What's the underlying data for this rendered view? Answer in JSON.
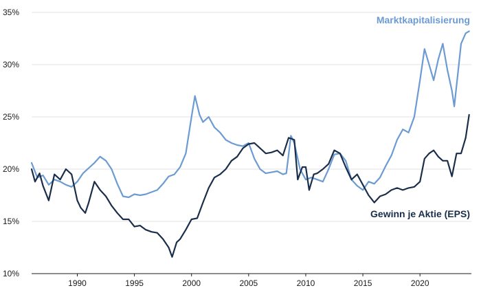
{
  "chart_data": {
    "type": "line",
    "title": "",
    "xlabel": "",
    "ylabel": "",
    "xlim": [
      1986.0,
      2024.5
    ],
    "ylim": [
      10,
      35
    ],
    "grid": true,
    "y_ticks": [
      10,
      15,
      20,
      25,
      30,
      35
    ],
    "y_tick_labels": [
      "10%",
      "15%",
      "20%",
      "25%",
      "30%",
      "35%"
    ],
    "x_ticks": [
      1990,
      1995,
      2000,
      2005,
      2010,
      2015,
      2020
    ],
    "x_tick_labels": [
      "1990",
      "1995",
      "2000",
      "2005",
      "2010",
      "2015",
      "2020"
    ],
    "series": [
      {
        "name": "Marktkapitalisierung",
        "color": "#6b9bd2",
        "label_position": "top-right",
        "points": [
          [
            1986.0,
            20.6
          ],
          [
            1986.5,
            19.2
          ],
          [
            1987.0,
            19.4
          ],
          [
            1987.5,
            18.5
          ],
          [
            1988.0,
            19.0
          ],
          [
            1988.5,
            18.8
          ],
          [
            1989.0,
            18.5
          ],
          [
            1989.5,
            18.3
          ],
          [
            1990.0,
            18.8
          ],
          [
            1990.5,
            19.6
          ],
          [
            1991.0,
            20.1
          ],
          [
            1991.5,
            20.6
          ],
          [
            1992.0,
            21.2
          ],
          [
            1992.5,
            20.8
          ],
          [
            1993.0,
            20.0
          ],
          [
            1993.5,
            18.6
          ],
          [
            1994.0,
            17.4
          ],
          [
            1994.5,
            17.3
          ],
          [
            1995.0,
            17.6
          ],
          [
            1995.5,
            17.5
          ],
          [
            1996.0,
            17.6
          ],
          [
            1996.5,
            17.8
          ],
          [
            1997.0,
            18.0
          ],
          [
            1997.5,
            18.6
          ],
          [
            1998.0,
            19.3
          ],
          [
            1998.5,
            19.5
          ],
          [
            1999.0,
            20.2
          ],
          [
            1999.5,
            21.5
          ],
          [
            2000.0,
            25.0
          ],
          [
            2000.3,
            27.0
          ],
          [
            2000.7,
            25.2
          ],
          [
            2001.0,
            24.5
          ],
          [
            2001.5,
            25.0
          ],
          [
            2002.0,
            24.0
          ],
          [
            2002.5,
            23.5
          ],
          [
            2003.0,
            22.8
          ],
          [
            2003.5,
            22.5
          ],
          [
            2004.0,
            22.3
          ],
          [
            2004.5,
            22.2
          ],
          [
            2005.0,
            22.5
          ],
          [
            2005.5,
            21.0
          ],
          [
            2006.0,
            20.0
          ],
          [
            2006.5,
            19.6
          ],
          [
            2007.0,
            19.7
          ],
          [
            2007.5,
            19.8
          ],
          [
            2008.0,
            19.5
          ],
          [
            2008.3,
            19.6
          ],
          [
            2008.7,
            23.2
          ],
          [
            2009.0,
            22.5
          ],
          [
            2009.5,
            20.0
          ],
          [
            2010.0,
            19.0
          ],
          [
            2010.5,
            19.2
          ],
          [
            2011.0,
            19.0
          ],
          [
            2011.5,
            18.8
          ],
          [
            2012.0,
            20.0
          ],
          [
            2012.5,
            21.4
          ],
          [
            2013.0,
            21.5
          ],
          [
            2013.5,
            20.8
          ],
          [
            2014.0,
            19.0
          ],
          [
            2014.5,
            18.4
          ],
          [
            2015.0,
            18.0
          ],
          [
            2015.5,
            18.8
          ],
          [
            2016.0,
            18.6
          ],
          [
            2016.5,
            19.2
          ],
          [
            2017.0,
            20.3
          ],
          [
            2017.5,
            21.3
          ],
          [
            2018.0,
            22.8
          ],
          [
            2018.5,
            23.8
          ],
          [
            2019.0,
            23.5
          ],
          [
            2019.5,
            25.0
          ],
          [
            2020.0,
            28.5
          ],
          [
            2020.4,
            31.5
          ],
          [
            2020.8,
            30.0
          ],
          [
            2021.2,
            28.5
          ],
          [
            2021.6,
            30.5
          ],
          [
            2022.0,
            32.0
          ],
          [
            2022.4,
            29.5
          ],
          [
            2022.8,
            27.5
          ],
          [
            2023.0,
            26.0
          ],
          [
            2023.3,
            29.0
          ],
          [
            2023.6,
            32.0
          ],
          [
            2024.0,
            33.0
          ],
          [
            2024.3,
            33.2
          ]
        ]
      },
      {
        "name": "Gewinn je Aktie (EPS)",
        "color": "#1a2e4a",
        "label_position": "bottom-right",
        "points": [
          [
            1986.0,
            20.0
          ],
          [
            1986.3,
            18.8
          ],
          [
            1986.7,
            19.6
          ],
          [
            1987.0,
            18.4
          ],
          [
            1987.5,
            17.0
          ],
          [
            1988.0,
            19.5
          ],
          [
            1988.5,
            19.0
          ],
          [
            1989.0,
            20.0
          ],
          [
            1989.5,
            19.5
          ],
          [
            1990.0,
            17.0
          ],
          [
            1990.3,
            16.3
          ],
          [
            1990.7,
            15.8
          ],
          [
            1991.0,
            16.8
          ],
          [
            1991.5,
            18.8
          ],
          [
            1992.0,
            18.0
          ],
          [
            1992.5,
            17.4
          ],
          [
            1993.0,
            16.5
          ],
          [
            1993.5,
            15.8
          ],
          [
            1994.0,
            15.2
          ],
          [
            1994.5,
            15.2
          ],
          [
            1995.0,
            14.5
          ],
          [
            1995.5,
            14.6
          ],
          [
            1996.0,
            14.2
          ],
          [
            1996.5,
            14.0
          ],
          [
            1997.0,
            13.9
          ],
          [
            1997.5,
            13.3
          ],
          [
            1998.0,
            12.5
          ],
          [
            1998.3,
            11.6
          ],
          [
            1998.7,
            13.0
          ],
          [
            1999.0,
            13.3
          ],
          [
            1999.5,
            14.2
          ],
          [
            2000.0,
            15.2
          ],
          [
            2000.5,
            15.3
          ],
          [
            2001.0,
            16.8
          ],
          [
            2001.5,
            18.2
          ],
          [
            2002.0,
            19.2
          ],
          [
            2002.5,
            19.5
          ],
          [
            2003.0,
            20.0
          ],
          [
            2003.5,
            20.8
          ],
          [
            2004.0,
            21.2
          ],
          [
            2004.5,
            22.0
          ],
          [
            2005.0,
            22.4
          ],
          [
            2005.5,
            22.5
          ],
          [
            2006.0,
            22.0
          ],
          [
            2006.5,
            21.5
          ],
          [
            2007.0,
            21.6
          ],
          [
            2007.5,
            21.8
          ],
          [
            2008.0,
            21.3
          ],
          [
            2008.5,
            23.0
          ],
          [
            2009.0,
            22.8
          ],
          [
            2009.3,
            19.0
          ],
          [
            2009.7,
            20.2
          ],
          [
            2010.0,
            20.2
          ],
          [
            2010.3,
            18.0
          ],
          [
            2010.7,
            19.5
          ],
          [
            2011.0,
            19.6
          ],
          [
            2011.5,
            20.0
          ],
          [
            2012.0,
            20.5
          ],
          [
            2012.5,
            21.8
          ],
          [
            2013.0,
            21.5
          ],
          [
            2013.5,
            20.2
          ],
          [
            2014.0,
            19.0
          ],
          [
            2014.5,
            19.5
          ],
          [
            2015.0,
            18.5
          ],
          [
            2015.5,
            17.5
          ],
          [
            2016.0,
            16.8
          ],
          [
            2016.5,
            17.4
          ],
          [
            2017.0,
            17.6
          ],
          [
            2017.5,
            18.0
          ],
          [
            2018.0,
            18.2
          ],
          [
            2018.5,
            18.0
          ],
          [
            2019.0,
            18.2
          ],
          [
            2019.5,
            18.3
          ],
          [
            2020.0,
            18.8
          ],
          [
            2020.4,
            21.0
          ],
          [
            2020.8,
            21.5
          ],
          [
            2021.2,
            21.8
          ],
          [
            2021.6,
            21.2
          ],
          [
            2022.0,
            20.8
          ],
          [
            2022.4,
            20.8
          ],
          [
            2022.8,
            19.3
          ],
          [
            2023.2,
            21.5
          ],
          [
            2023.6,
            21.5
          ],
          [
            2024.0,
            23.0
          ],
          [
            2024.3,
            25.2
          ]
        ]
      }
    ]
  }
}
